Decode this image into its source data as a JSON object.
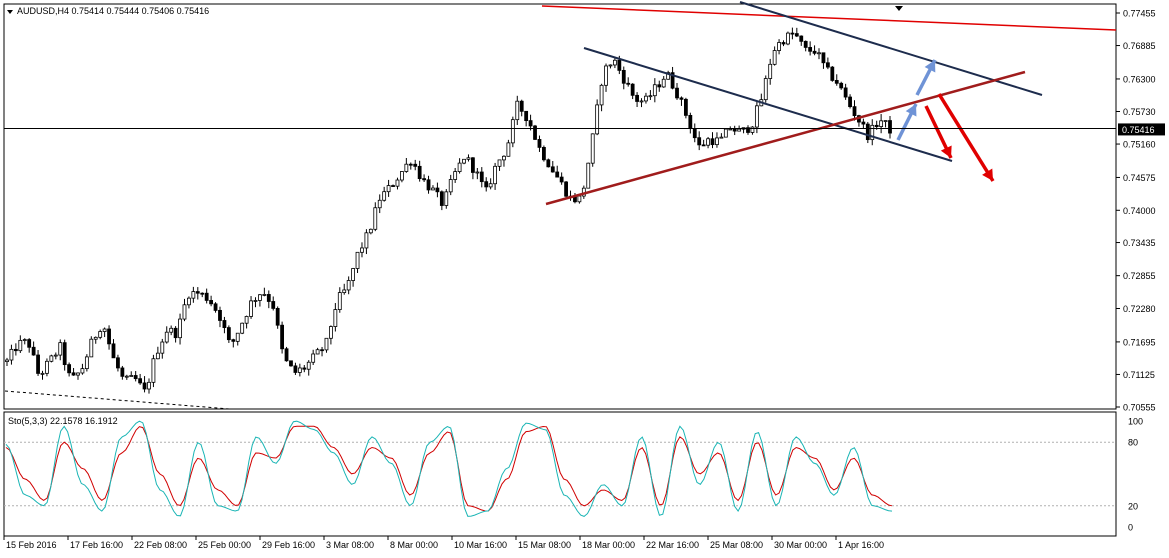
{
  "window": {
    "symbol_line": "AUDUSD,H4  0.75414 0.75444 0.75406 0.75416"
  },
  "indicator": {
    "label": "Sto(5,3,3) 22.1578 16.1912",
    "levels_label": [
      "100",
      "80",
      "20",
      "0"
    ]
  },
  "colors": {
    "background": "#ffffff",
    "candle": "#000000",
    "bid_line": "#000000",
    "resistance_top": "#e00000",
    "channel_lines": "#1d2c4d",
    "support_line": "#a01c1c",
    "arrow_up": "#6f93d6",
    "arrow_down": "#e00000",
    "stoch_main": "#1ab5b5",
    "stoch_signal": "#d00000",
    "level_line": "#b0b0b0"
  },
  "chart_data": {
    "type": "candlestick",
    "symbol": "AUDUSD",
    "timeframe": "H4",
    "last_price": "0.75416",
    "ohlc_last": {
      "open": 0.75414,
      "high": 0.75444,
      "low": 0.75406,
      "close": 0.75416
    },
    "y_ticks": [
      "0.77455",
      "0.76885",
      "0.76300",
      "0.75730",
      "0.75416",
      "0.75160",
      "0.74575",
      "0.74000",
      "0.73435",
      "0.72855",
      "0.72280",
      "0.71695",
      "0.71125",
      "0.70555"
    ],
    "x_ticks": [
      "15 Feb 2016",
      "17 Feb 16:00",
      "22 Feb 08:00",
      "25 Feb 00:00",
      "29 Feb 16:00",
      "3 Mar 08:00",
      "8 Mar 00:00",
      "10 Mar 16:00",
      "15 Mar 08:00",
      "18 Mar 00:00",
      "22 Mar 16:00",
      "25 Mar 08:00",
      "30 Mar 00:00",
      "1 Apr 16:00"
    ],
    "ylim": [
      0.70555,
      0.77455
    ],
    "price_path": [
      [
        0.7135,
        0.7165
      ],
      [
        0.717,
        0.711
      ],
      [
        0.7135,
        0.716
      ],
      [
        0.71,
        0.712
      ],
      [
        0.717,
        0.7205
      ],
      [
        0.714,
        0.71
      ],
      [
        0.7105,
        0.708
      ],
      [
        0.715,
        0.719
      ],
      [
        0.7185,
        0.7255
      ],
      [
        0.7255,
        0.7245
      ],
      [
        0.7215,
        0.716
      ],
      [
        0.72,
        0.724
      ],
      [
        0.726,
        0.7235
      ],
      [
        0.714,
        0.7115
      ],
      [
        0.7125,
        0.7145
      ],
      [
        0.7165,
        0.724
      ],
      [
        0.7265,
        0.7325
      ],
      [
        0.736,
        0.742
      ],
      [
        0.744,
        0.7465
      ],
      [
        0.749,
        0.7455
      ],
      [
        0.7435,
        0.741
      ],
      [
        0.746,
        0.7495
      ],
      [
        0.747,
        0.743
      ],
      [
        0.748,
        0.751
      ],
      [
        0.7585,
        0.756
      ],
      [
        0.751,
        0.748
      ],
      [
        0.745,
        0.742
      ],
      [
        0.742,
        0.752
      ],
      [
        0.764,
        0.7665
      ],
      [
        0.763,
        0.7595
      ],
      [
        0.759,
        0.7615
      ],
      [
        0.764,
        0.7605
      ],
      [
        0.756,
        0.751
      ],
      [
        0.7525,
        0.752
      ],
      [
        0.7545,
        0.7535
      ],
      [
        0.755,
        0.76
      ],
      [
        0.768,
        0.77
      ],
      [
        0.771,
        0.768
      ],
      [
        0.768,
        0.7645
      ],
      [
        0.7625,
        0.759
      ],
      [
        0.756,
        0.753
      ],
      [
        0.756,
        0.7542
      ]
    ],
    "stochastic": {
      "main": [
        78,
        30,
        20,
        95,
        40,
        15,
        85,
        100,
        35,
        10,
        80,
        20,
        15,
        85,
        60,
        100,
        92,
        70,
        40,
        85,
        60,
        20,
        80,
        95,
        10,
        15,
        55,
        98,
        92,
        30,
        10,
        40,
        20,
        85,
        10,
        95,
        40,
        80,
        15,
        90,
        20,
        85,
        60,
        30,
        75,
        20,
        15
      ],
      "signal": [
        75,
        45,
        25,
        80,
        55,
        25,
        70,
        95,
        50,
        20,
        65,
        35,
        20,
        70,
        65,
        95,
        95,
        75,
        50,
        75,
        65,
        30,
        70,
        90,
        20,
        15,
        45,
        90,
        95,
        45,
        20,
        35,
        25,
        75,
        20,
        85,
        50,
        70,
        25,
        80,
        30,
        75,
        65,
        35,
        65,
        30,
        20
      ]
    }
  }
}
